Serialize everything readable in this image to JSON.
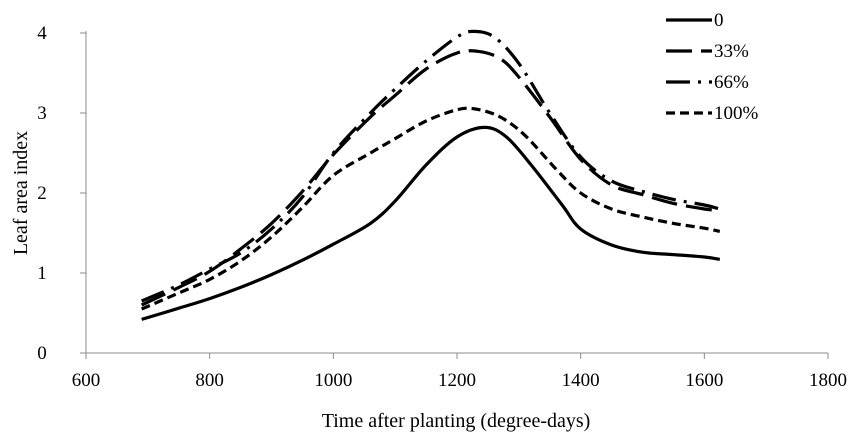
{
  "chart_data": {
    "type": "line",
    "title": "",
    "xlabel": "Time after planting (degree-days)",
    "ylabel": "Leaf area index",
    "xlim": [
      600,
      1800
    ],
    "ylim": [
      0,
      4
    ],
    "xticks": [
      600,
      800,
      1000,
      1200,
      1400,
      1600,
      1800
    ],
    "yticks": [
      0,
      1,
      2,
      3,
      4
    ],
    "grid": false,
    "legend_position": "top-right",
    "series": [
      {
        "name": "0",
        "style": "solid",
        "x": [
          690,
          750,
          800,
          850,
          900,
          950,
          1000,
          1060,
          1100,
          1150,
          1200,
          1245,
          1280,
          1320,
          1370,
          1400,
          1450,
          1500,
          1550,
          1600,
          1625
        ],
        "y": [
          0.42,
          0.56,
          0.68,
          0.82,
          0.98,
          1.16,
          1.36,
          1.62,
          1.9,
          2.35,
          2.7,
          2.82,
          2.7,
          2.35,
          1.85,
          1.55,
          1.35,
          1.26,
          1.23,
          1.2,
          1.17
        ]
      },
      {
        "name": "33%",
        "style": "long-dash",
        "x": [
          690,
          750,
          800,
          850,
          900,
          950,
          1000,
          1060,
          1100,
          1150,
          1200,
          1235,
          1270,
          1300,
          1350,
          1400,
          1450,
          1500,
          1550,
          1600,
          1625
        ],
        "y": [
          0.6,
          0.82,
          1.02,
          1.3,
          1.62,
          2.02,
          2.48,
          2.95,
          3.22,
          3.55,
          3.75,
          3.77,
          3.68,
          3.45,
          2.95,
          2.42,
          2.1,
          1.98,
          1.87,
          1.8,
          1.78
        ]
      },
      {
        "name": "66%",
        "style": "dash-dot",
        "x": [
          690,
          750,
          800,
          850,
          900,
          950,
          1000,
          1060,
          1100,
          1150,
          1200,
          1225,
          1260,
          1300,
          1350,
          1400,
          1450,
          1500,
          1550,
          1600,
          1625
        ],
        "y": [
          0.65,
          0.85,
          1.05,
          1.25,
          1.55,
          1.95,
          2.5,
          3.0,
          3.3,
          3.65,
          3.95,
          4.02,
          3.95,
          3.62,
          3.0,
          2.45,
          2.15,
          2.02,
          1.92,
          1.85,
          1.8
        ]
      },
      {
        "name": "100%",
        "style": "short-dash",
        "x": [
          690,
          750,
          800,
          850,
          900,
          950,
          1000,
          1060,
          1100,
          1150,
          1200,
          1230,
          1270,
          1310,
          1360,
          1400,
          1450,
          1500,
          1550,
          1600,
          1625
        ],
        "y": [
          0.55,
          0.75,
          0.92,
          1.15,
          1.45,
          1.82,
          2.22,
          2.5,
          2.68,
          2.9,
          3.04,
          3.05,
          2.95,
          2.72,
          2.3,
          2.0,
          1.8,
          1.7,
          1.62,
          1.56,
          1.52
        ]
      }
    ]
  }
}
